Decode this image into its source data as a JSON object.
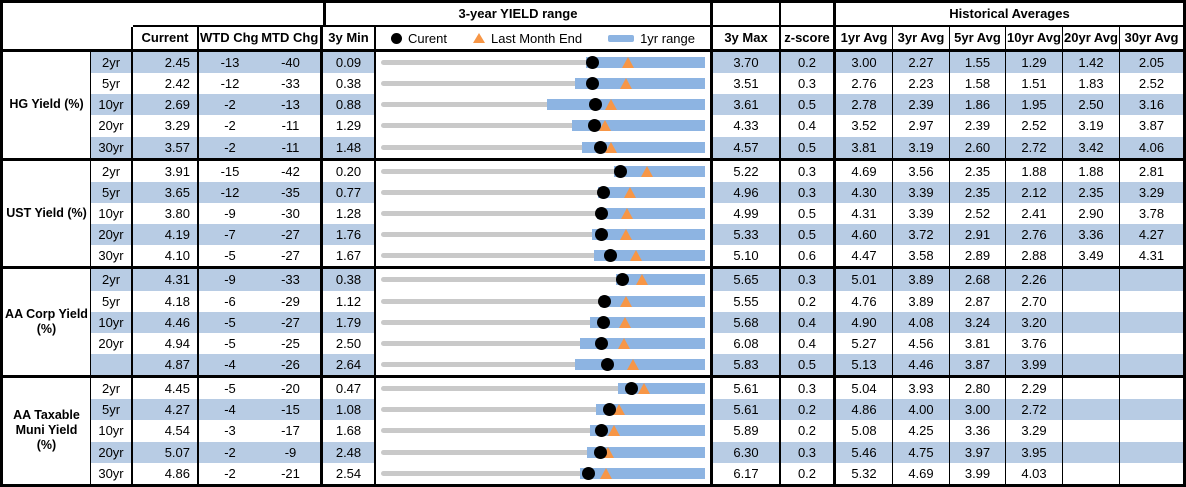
{
  "colors": {
    "row_band": "#B8CCE4",
    "range_bar": "#8DB4E2",
    "triangle": "#F79646",
    "track": "#C9C9C9",
    "border": "#000000"
  },
  "chart_data": {
    "type": "table",
    "title_range": "3-year YIELD range",
    "title_hist": "Historical Averages",
    "columns": {
      "current": "Current",
      "wtd": "WTD Chg",
      "mtd": "MTD Chg",
      "min3y": "3y Min",
      "max3y": "3y Max",
      "zscore": "z-score",
      "avgs": [
        "1yr Avg",
        "3yr Avg",
        "5yr Avg",
        "10yr Avg",
        "20yr Avg",
        "30yr Avg"
      ]
    },
    "legend": {
      "current": "Curent",
      "last_month_end": "Last Month End",
      "range_1yr": "1yr range"
    },
    "groups": [
      {
        "label": "HG Yield (%)",
        "rows": [
          {
            "tenor": "2yr",
            "current": "2.45",
            "wtd_chg": "-13",
            "mtd_chg": "-40",
            "min_3y": "0.09",
            "max_3y": "3.70",
            "z_score": "0.2",
            "last_month_end": 2.85,
            "range_1yr_low": 2.37,
            "avgs": [
              "3.00",
              "2.27",
              "1.55",
              "1.29",
              "1.42",
              "2.05"
            ]
          },
          {
            "tenor": "5yr",
            "current": "2.42",
            "wtd_chg": "-12",
            "mtd_chg": "-33",
            "min_3y": "0.38",
            "max_3y": "3.51",
            "z_score": "0.3",
            "last_month_end": 2.75,
            "range_1yr_low": 2.25,
            "avgs": [
              "2.76",
              "2.23",
              "1.58",
              "1.51",
              "1.83",
              "2.52"
            ]
          },
          {
            "tenor": "10yr",
            "current": "2.69",
            "wtd_chg": "-2",
            "mtd_chg": "-13",
            "min_3y": "0.88",
            "max_3y": "3.61",
            "z_score": "0.5",
            "last_month_end": 2.82,
            "range_1yr_low": 2.28,
            "avgs": [
              "2.78",
              "2.39",
              "1.86",
              "1.95",
              "2.50",
              "3.16"
            ]
          },
          {
            "tenor": "20yr",
            "current": "3.29",
            "wtd_chg": "-2",
            "mtd_chg": "-11",
            "min_3y": "1.29",
            "max_3y": "4.33",
            "z_score": "0.4",
            "last_month_end": 3.4,
            "range_1yr_low": 3.08,
            "avgs": [
              "3.52",
              "2.97",
              "2.39",
              "2.52",
              "3.19",
              "3.87"
            ]
          },
          {
            "tenor": "30yr",
            "current": "3.57",
            "wtd_chg": "-2",
            "mtd_chg": "-11",
            "min_3y": "1.48",
            "max_3y": "4.57",
            "z_score": "0.5",
            "last_month_end": 3.68,
            "range_1yr_low": 3.4,
            "avgs": [
              "3.81",
              "3.19",
              "2.60",
              "2.72",
              "3.42",
              "4.06"
            ]
          }
        ]
      },
      {
        "label": "UST Yield (%)",
        "rows": [
          {
            "tenor": "2yr",
            "current": "3.91",
            "wtd_chg": "-15",
            "mtd_chg": "-42",
            "min_3y": "0.20",
            "max_3y": "5.22",
            "z_score": "0.3",
            "last_month_end": 4.33,
            "range_1yr_low": 3.81,
            "avgs": [
              "4.69",
              "3.56",
              "2.35",
              "1.88",
              "1.88",
              "2.81"
            ]
          },
          {
            "tenor": "5yr",
            "current": "3.65",
            "wtd_chg": "-12",
            "mtd_chg": "-35",
            "min_3y": "0.77",
            "max_3y": "4.96",
            "z_score": "0.3",
            "last_month_end": 4.0,
            "range_1yr_low": 3.57,
            "avgs": [
              "4.30",
              "3.39",
              "2.35",
              "2.12",
              "2.35",
              "3.29"
            ]
          },
          {
            "tenor": "10yr",
            "current": "3.80",
            "wtd_chg": "-9",
            "mtd_chg": "-30",
            "min_3y": "1.28",
            "max_3y": "4.99",
            "z_score": "0.5",
            "last_month_end": 4.1,
            "range_1yr_low": 3.75,
            "avgs": [
              "4.31",
              "3.39",
              "2.52",
              "2.41",
              "2.90",
              "3.78"
            ]
          },
          {
            "tenor": "20yr",
            "current": "4.19",
            "wtd_chg": "-7",
            "mtd_chg": "-27",
            "min_3y": "1.76",
            "max_3y": "5.33",
            "z_score": "0.5",
            "last_month_end": 4.46,
            "range_1yr_low": 4.08,
            "avgs": [
              "4.60",
              "3.72",
              "2.91",
              "2.76",
              "3.36",
              "4.27"
            ]
          },
          {
            "tenor": "30yr",
            "current": "4.10",
            "wtd_chg": "-5",
            "mtd_chg": "-27",
            "min_3y": "1.67",
            "max_3y": "5.10",
            "z_score": "0.6",
            "last_month_end": 4.37,
            "range_1yr_low": 3.93,
            "avgs": [
              "4.47",
              "3.58",
              "2.89",
              "2.88",
              "3.49",
              "4.31"
            ]
          }
        ]
      },
      {
        "label": "AA Corp Yield\n(%)",
        "rows": [
          {
            "tenor": "2yr",
            "current": "4.31",
            "wtd_chg": "-9",
            "mtd_chg": "-33",
            "min_3y": "0.38",
            "max_3y": "5.65",
            "z_score": "0.3",
            "last_month_end": 4.64,
            "range_1yr_low": 4.21,
            "avgs": [
              "5.01",
              "3.89",
              "2.68",
              "2.26",
              "",
              ""
            ]
          },
          {
            "tenor": "5yr",
            "current": "4.18",
            "wtd_chg": "-6",
            "mtd_chg": "-29",
            "min_3y": "1.12",
            "max_3y": "5.55",
            "z_score": "0.2",
            "last_month_end": 4.47,
            "range_1yr_low": 4.12,
            "avgs": [
              "4.76",
              "3.89",
              "2.87",
              "2.70",
              "",
              ""
            ]
          },
          {
            "tenor": "10yr",
            "current": "4.46",
            "wtd_chg": "-5",
            "mtd_chg": "-27",
            "min_3y": "1.79",
            "max_3y": "5.68",
            "z_score": "0.4",
            "last_month_end": 4.73,
            "range_1yr_low": 4.3,
            "avgs": [
              "4.90",
              "4.08",
              "3.24",
              "3.20",
              "",
              ""
            ]
          },
          {
            "tenor": "20yr",
            "current": "4.94",
            "wtd_chg": "-5",
            "mtd_chg": "-25",
            "min_3y": "2.50",
            "max_3y": "6.08",
            "z_score": "0.4",
            "last_month_end": 5.19,
            "range_1yr_low": 4.7,
            "avgs": [
              "5.27",
              "4.56",
              "3.81",
              "3.76",
              "",
              ""
            ]
          },
          {
            "tenor": "",
            "current": "4.87",
            "wtd_chg": "-4",
            "mtd_chg": "-26",
            "min_3y": "2.64",
            "max_3y": "5.83",
            "z_score": "0.5",
            "last_month_end": 5.13,
            "range_1yr_low": 4.55,
            "avgs": [
              "5.13",
              "4.46",
              "3.87",
              "3.99",
              "",
              ""
            ]
          }
        ]
      },
      {
        "label": "AA Taxable\nMuni Yield\n(%)",
        "rows": [
          {
            "tenor": "2yr",
            "current": "4.45",
            "wtd_chg": "-5",
            "mtd_chg": "-20",
            "min_3y": "0.47",
            "max_3y": "5.61",
            "z_score": "0.3",
            "last_month_end": 4.65,
            "range_1yr_low": 4.23,
            "avgs": [
              "5.04",
              "3.93",
              "2.80",
              "2.29",
              "",
              ""
            ]
          },
          {
            "tenor": "5yr",
            "current": "4.27",
            "wtd_chg": "-4",
            "mtd_chg": "-15",
            "min_3y": "1.08",
            "max_3y": "5.61",
            "z_score": "0.2",
            "last_month_end": 4.42,
            "range_1yr_low": 4.09,
            "avgs": [
              "4.86",
              "4.00",
              "3.00",
              "2.72",
              "",
              ""
            ]
          },
          {
            "tenor": "10yr",
            "current": "4.54",
            "wtd_chg": "-3",
            "mtd_chg": "-17",
            "min_3y": "1.68",
            "max_3y": "5.89",
            "z_score": "0.2",
            "last_month_end": 4.71,
            "range_1yr_low": 4.4,
            "avgs": [
              "5.08",
              "4.25",
              "3.36",
              "3.29",
              "",
              ""
            ]
          },
          {
            "tenor": "20yr",
            "current": "5.07",
            "wtd_chg": "-2",
            "mtd_chg": "-9",
            "min_3y": "2.48",
            "max_3y": "6.30",
            "z_score": "0.3",
            "last_month_end": 5.16,
            "range_1yr_low": 4.91,
            "avgs": [
              "5.46",
              "4.75",
              "3.97",
              "3.95",
              "",
              ""
            ]
          },
          {
            "tenor": "30yr",
            "current": "4.86",
            "wtd_chg": "-2",
            "mtd_chg": "-21",
            "min_3y": "2.54",
            "max_3y": "6.17",
            "z_score": "0.2",
            "last_month_end": 5.07,
            "range_1yr_low": 4.77,
            "avgs": [
              "5.32",
              "4.69",
              "3.99",
              "4.03",
              "",
              ""
            ]
          }
        ]
      }
    ]
  }
}
